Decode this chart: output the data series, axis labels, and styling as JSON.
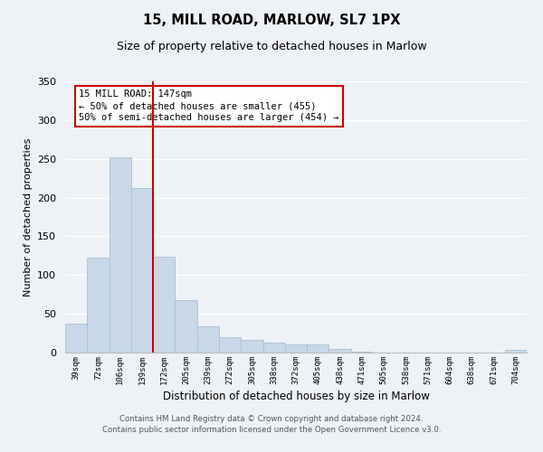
{
  "title": "15, MILL ROAD, MARLOW, SL7 1PX",
  "subtitle": "Size of property relative to detached houses in Marlow",
  "xlabel": "Distribution of detached houses by size in Marlow",
  "ylabel": "Number of detached properties",
  "bar_labels": [
    "39sqm",
    "72sqm",
    "106sqm",
    "139sqm",
    "172sqm",
    "205sqm",
    "239sqm",
    "272sqm",
    "305sqm",
    "338sqm",
    "372sqm",
    "405sqm",
    "438sqm",
    "471sqm",
    "505sqm",
    "538sqm",
    "571sqm",
    "604sqm",
    "638sqm",
    "671sqm",
    "704sqm"
  ],
  "bar_values": [
    37,
    122,
    252,
    212,
    124,
    68,
    34,
    20,
    16,
    13,
    10,
    10,
    5,
    1,
    0,
    0,
    0,
    0,
    0,
    0,
    4
  ],
  "bar_color": "#c8d8e8",
  "bar_edge_color": "#a8c0d4",
  "vline_x": 3.5,
  "vline_color": "#cc0000",
  "ylim": [
    0,
    350
  ],
  "yticks": [
    0,
    50,
    100,
    150,
    200,
    250,
    300,
    350
  ],
  "annotation_title": "15 MILL ROAD: 147sqm",
  "annotation_line1": "← 50% of detached houses are smaller (455)",
  "annotation_line2": "50% of semi-detached houses are larger (454) →",
  "annotation_box_facecolor": "#ffffff",
  "annotation_box_edgecolor": "#cc0000",
  "footer_line1": "Contains HM Land Registry data © Crown copyright and database right 2024.",
  "footer_line2": "Contains public sector information licensed under the Open Government Licence v3.0.",
  "background_color": "#eef2f6",
  "grid_color": "#ffffff"
}
